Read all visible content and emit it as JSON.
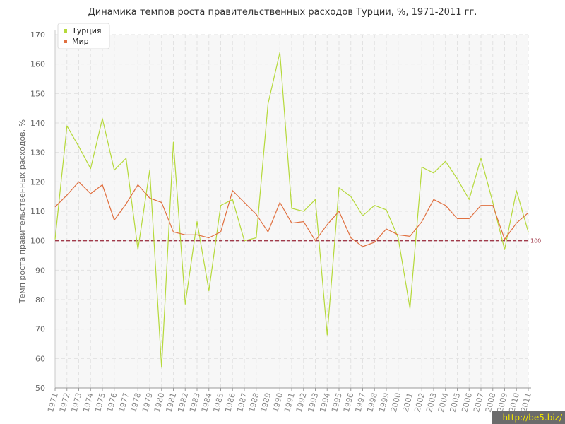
{
  "chart_data": {
    "type": "line",
    "title": "Динамика темпов роста правительственных расходов Турции, %, 1971-2011 гг.",
    "xlabel": "",
    "ylabel": "Темп роста правительственных расходов, %",
    "ylim": [
      50,
      170
    ],
    "yticks": [
      "50",
      "60",
      "70",
      "80",
      "90",
      "100",
      "110",
      "120",
      "130",
      "140",
      "150",
      "160",
      "170"
    ],
    "x": [
      "1971",
      "1972",
      "1973",
      "1974",
      "1975",
      "1976",
      "1977",
      "1978",
      "1979",
      "1980",
      "1981",
      "1982",
      "1983",
      "1984",
      "1985",
      "1986",
      "1987",
      "1988",
      "1989",
      "1990",
      "1991",
      "1992",
      "1993",
      "1994",
      "1995",
      "1996",
      "1997",
      "1998",
      "1999",
      "2000",
      "2001",
      "2002",
      "2003",
      "2004",
      "2005",
      "2006",
      "2007",
      "2008",
      "2009",
      "2010",
      "2011"
    ],
    "grid": true,
    "legend_position": "top-left",
    "reference_line": {
      "value": 100,
      "label": "100",
      "color": "#a03a4a"
    },
    "series": [
      {
        "name": "Турция",
        "color": "#b5d93a",
        "values": [
          100.5,
          139,
          132,
          124.5,
          141.5,
          124,
          128,
          97,
          124,
          57,
          133.5,
          78.5,
          106.5,
          83,
          112,
          114,
          100,
          101,
          146.5,
          164,
          111,
          110,
          114,
          68,
          118,
          115,
          108.5,
          112,
          110.5,
          101,
          77,
          125,
          123,
          127,
          121,
          114,
          128,
          113,
          97,
          117,
          103
        ]
      },
      {
        "name": "Мир",
        "color": "#e07040",
        "values": [
          111.5,
          115.5,
          120,
          116,
          119,
          107,
          112.5,
          119,
          114.5,
          113,
          103,
          102,
          102,
          101,
          103,
          117,
          113,
          109,
          103,
          113,
          106,
          106.5,
          100,
          105.5,
          110,
          101,
          98,
          99.5,
          104,
          102,
          101.5,
          106.5,
          114,
          112,
          107.5,
          107.5,
          112,
          112,
          100.5,
          106,
          109.5
        ]
      }
    ]
  },
  "watermark": "http://be5.biz/"
}
